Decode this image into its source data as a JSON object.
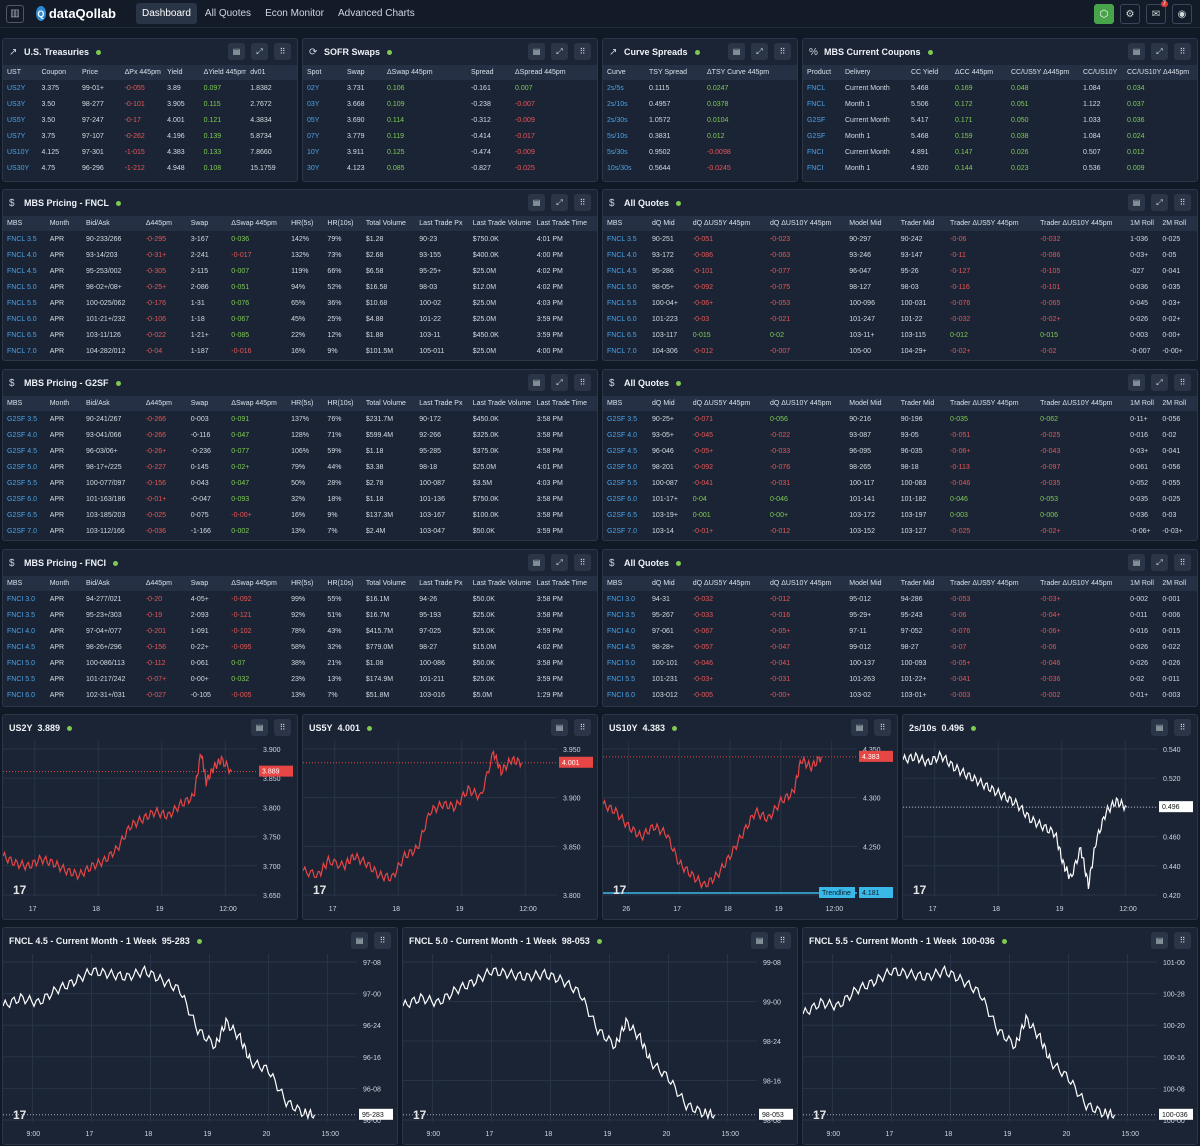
{
  "topbar": {
    "logo": "dataQollab",
    "nav": [
      "Dashboard",
      "All Quotes",
      "Econ Monitor",
      "Advanced Charts"
    ],
    "badge": "7"
  },
  "treasuries": {
    "title": "U.S. Treasuries",
    "cols": [
      "UST",
      "Coupon",
      "Price",
      "ΔPx 445pm",
      "Yield",
      "ΔYield 445pm",
      "dv01"
    ],
    "rows": [
      [
        "US2Y",
        "3.375",
        "99-01+",
        "-0-055",
        "3.89",
        "0.097",
        "1.8382"
      ],
      [
        "US3Y",
        "3.50",
        "98-277",
        "-0-101",
        "3.905",
        "0.115",
        "2.7672"
      ],
      [
        "US5Y",
        "3.50",
        "97-247",
        "-0-17",
        "4.001",
        "0.121",
        "4.3834"
      ],
      [
        "US7Y",
        "3.75",
        "97-107",
        "-0-262",
        "4.196",
        "0.139",
        "5.8734"
      ],
      [
        "US10Y",
        "4.125",
        "97-301",
        "-1-015",
        "4.383",
        "0.133",
        "7.8660"
      ],
      [
        "US30Y",
        "4.75",
        "96-296",
        "-1-212",
        "4.948",
        "0.108",
        "15.1759"
      ]
    ]
  },
  "sofr": {
    "title": "SOFR Swaps",
    "cols": [
      "Spot",
      "Swap",
      "ΔSwap 445pm",
      "Spread",
      "ΔSpread 445pm"
    ],
    "rows": [
      [
        "02Y",
        "3.731",
        "0.106",
        "-0.161",
        "0.007"
      ],
      [
        "03Y",
        "3.668",
        "0.109",
        "-0.238",
        "-0.007"
      ],
      [
        "05Y",
        "3.690",
        "0.114",
        "-0.312",
        "-0.009"
      ],
      [
        "07Y",
        "3.779",
        "0.119",
        "-0.414",
        "-0.017"
      ],
      [
        "10Y",
        "3.911",
        "0.125",
        "-0.474",
        "-0.009"
      ],
      [
        "30Y",
        "4.123",
        "0.085",
        "-0.827",
        "-0.025"
      ]
    ]
  },
  "curve": {
    "title": "Curve Spreads",
    "cols": [
      "Curve",
      "TSY Spread",
      "ΔTSY Curve 445pm"
    ],
    "rows": [
      [
        "2s/5s",
        "0.1115",
        "0.0247"
      ],
      [
        "2s/10s",
        "0.4957",
        "0.0378"
      ],
      [
        "2s/30s",
        "1.0572",
        "0.0104"
      ],
      [
        "5s/10s",
        "0.3831",
        "0.012"
      ],
      [
        "5s/30s",
        "0.9502",
        "-0.0098"
      ],
      [
        "10s/30s",
        "0.5644",
        "-0.0245"
      ]
    ]
  },
  "mbscc": {
    "title": "MBS Current Coupons",
    "cols": [
      "Product",
      "Delivery",
      "CC Yield",
      "ΔCC 445pm",
      "CC/US5Y Δ445pm",
      "CC/US10Y",
      "CC/US10Y Δ445pm"
    ],
    "rows": [
      [
        "FNCL",
        "Current Month",
        "5.468",
        "0.169",
        "0.048",
        "1.084",
        "0.034"
      ],
      [
        "FNCL",
        "Month 1",
        "5.506",
        "0.172",
        "0.051",
        "1.122",
        "0.037"
      ],
      [
        "G2SF",
        "Current Month",
        "5.417",
        "0.171",
        "0.050",
        "1.033",
        "0.036"
      ],
      [
        "G2SF",
        "Month 1",
        "5.468",
        "0.159",
        "0.038",
        "1.084",
        "0.024"
      ],
      [
        "FNCI",
        "Current Month",
        "4.891",
        "0.147",
        "0.026",
        "0.507",
        "0.012"
      ],
      [
        "FNCI",
        "Month 1",
        "4.920",
        "0.144",
        "0.023",
        "0.536",
        "0.009"
      ]
    ]
  },
  "pricing_cols": [
    "MBS",
    "Month",
    "Bid/Ask",
    "Δ445pm",
    "Swap",
    "ΔSwap 445pm",
    "HR(5s)",
    "HR(10s)",
    "Total Volume",
    "Last Trade Px",
    "Last Trade Volume",
    "Last Trade Time"
  ],
  "fncl": {
    "title": "MBS Pricing - FNCL",
    "rows": [
      [
        "FNCL 3.5",
        "APR",
        "90-233/266",
        "-0-295",
        "3-167",
        "0-036",
        "142%",
        "79%",
        "$1.28",
        "90-23",
        "$750.0K",
        "4:01 PM"
      ],
      [
        "FNCL 4.0",
        "APR",
        "93-14/203",
        "-0-31+",
        "2-241",
        "-0-017",
        "132%",
        "73%",
        "$2.68",
        "93-155",
        "$400.0K",
        "4:00 PM"
      ],
      [
        "FNCL 4.5",
        "APR",
        "95-253/002",
        "-0-305",
        "2-115",
        "0-007",
        "119%",
        "66%",
        "$6.58",
        "95-25+",
        "$25.0M",
        "4:02 PM"
      ],
      [
        "FNCL 5.0",
        "APR",
        "98-02+/08+",
        "-0-25+",
        "2-086",
        "0-051",
        "94%",
        "52%",
        "$16.58",
        "98-03",
        "$12.0M",
        "4:02 PM"
      ],
      [
        "FNCL 5.5",
        "APR",
        "100-025/062",
        "-0-176",
        "1-31",
        "0-076",
        "65%",
        "36%",
        "$10.68",
        "100-02",
        "$25.0M",
        "4:03 PM"
      ],
      [
        "FNCL 6.0",
        "APR",
        "101-21+/232",
        "-0-106",
        "1-18",
        "0-067",
        "45%",
        "25%",
        "$4.88",
        "101-22",
        "$25.0M",
        "3:59 PM"
      ],
      [
        "FNCL 6.5",
        "APR",
        "103-11/126",
        "-0-022",
        "1-21+",
        "0-085",
        "22%",
        "12%",
        "$1.88",
        "103-11",
        "$450.0K",
        "3:59 PM"
      ],
      [
        "FNCL 7.0",
        "APR",
        "104-282/012",
        "-0-04",
        "1-187",
        "-0-016",
        "16%",
        "9%",
        "$101.5M",
        "105-011",
        "$25.0M",
        "4:00 PM"
      ]
    ]
  },
  "g2sf": {
    "title": "MBS Pricing - G2SF",
    "rows": [
      [
        "G2SF 3.5",
        "APR",
        "90-241/267",
        "-0-266",
        "0-003",
        "0-091",
        "137%",
        "76%",
        "$231.7M",
        "90-172",
        "$450.0K",
        "3:58 PM"
      ],
      [
        "G2SF 4.0",
        "APR",
        "93-041/066",
        "-0-266",
        "-0-116",
        "0-047",
        "128%",
        "71%",
        "$599.4M",
        "92-266",
        "$325.0K",
        "3:58 PM"
      ],
      [
        "G2SF 4.5",
        "APR",
        "96-03/06+",
        "-0-26+",
        "-0-236",
        "0-077",
        "106%",
        "59%",
        "$1.18",
        "95-285",
        "$375.0K",
        "3:58 PM"
      ],
      [
        "G2SF 5.0",
        "APR",
        "98-17+/225",
        "-0-227",
        "0-145",
        "0-02+",
        "79%",
        "44%",
        "$3.38",
        "98-18",
        "$25.0M",
        "4:01 PM"
      ],
      [
        "G2SF 5.5",
        "APR",
        "100-077/097",
        "-0-156",
        "0-043",
        "0-047",
        "50%",
        "28%",
        "$2.78",
        "100-087",
        "$3.5M",
        "4:03 PM"
      ],
      [
        "G2SF 6.0",
        "APR",
        "101-163/186",
        "-0-01+",
        "-0-047",
        "0-093",
        "32%",
        "18%",
        "$1.18",
        "101-136",
        "$750.0K",
        "3:58 PM"
      ],
      [
        "G2SF 6.5",
        "APR",
        "103-185/203",
        "-0-025",
        "0-075",
        "-0-00+",
        "16%",
        "9%",
        "$137.3M",
        "103-167",
        "$100.0K",
        "3:58 PM"
      ],
      [
        "G2SF 7.0",
        "APR",
        "103-112/166",
        "-0-036",
        "-1-166",
        "0-002",
        "13%",
        "7%",
        "$2.4M",
        "103-047",
        "$50.0K",
        "3:59 PM"
      ]
    ]
  },
  "fnci": {
    "title": "MBS Pricing - FNCI",
    "rows": [
      [
        "FNCI 3.0",
        "APR",
        "94-277/021",
        "-0-20",
        "4-05+",
        "-0-092",
        "99%",
        "55%",
        "$16.1M",
        "94-26",
        "$50.0K",
        "3:58 PM"
      ],
      [
        "FNCI 3.5",
        "APR",
        "95-23+/303",
        "-0-19",
        "2-093",
        "-0-121",
        "92%",
        "51%",
        "$16.7M",
        "95-193",
        "$25.0K",
        "3:58 PM"
      ],
      [
        "FNCI 4.0",
        "APR",
        "97-04+/077",
        "-0-201",
        "1-091",
        "-0-102",
        "78%",
        "43%",
        "$415.7M",
        "97-025",
        "$25.0K",
        "3:59 PM"
      ],
      [
        "FNCI 4.5",
        "APR",
        "98-26+/296",
        "-0-156",
        "0-22+",
        "-0-095",
        "58%",
        "32%",
        "$779.0M",
        "98-27",
        "$15.0M",
        "4:02 PM"
      ],
      [
        "FNCI 5.0",
        "APR",
        "100-086/113",
        "-0-112",
        "0-061",
        "0-07",
        "38%",
        "21%",
        "$1.08",
        "100-086",
        "$50.0K",
        "3:58 PM"
      ],
      [
        "FNCI 5.5",
        "APR",
        "101-217/242",
        "-0-07+",
        "0-00+",
        "0-032",
        "23%",
        "13%",
        "$174.9M",
        "101-211",
        "$25.0K",
        "3:59 PM"
      ],
      [
        "FNCI 6.0",
        "APR",
        "102-31+/031",
        "-0-027",
        "-0-105",
        "-0-005",
        "13%",
        "7%",
        "$51.8M",
        "103-016",
        "$5.0M",
        "1:29 PM"
      ]
    ]
  },
  "quotes_cols_a": [
    "MBS",
    "dQ Mid",
    "dQ ΔUS5Y 445pm",
    "dQ ΔUS10Y 445pm",
    "Model Mid",
    "Trader Mid",
    "Trader ΔUS5Y 445pm",
    "Trader ΔUS10Y 445pm",
    "1M Roll",
    "2M Roll"
  ],
  "quotes_cols_b": [
    "MBS",
    "dQ Mid",
    "dQ ΔUS5Y 445pm",
    "dQ ΔUS10Y 445pm",
    "Model Mid",
    "Trader Mid",
    "Trader ΔUS5Y 445pm",
    "Trader ΔUS10Y 445pm",
    "1M Roll",
    "2M Roll"
  ],
  "q1": {
    "title": "All Quotes",
    "rows": [
      [
        "FNCL 3.5",
        "90-251",
        "-0-051",
        "-0-023",
        "90-297",
        "90-242",
        "-0-06",
        "-0-032",
        "1-036",
        "0-025"
      ],
      [
        "FNCL 4.0",
        "93-172",
        "-0-086",
        "-0-063",
        "93-246",
        "93-147",
        "-0-11",
        "-0-086",
        "0-03+",
        "0-05"
      ],
      [
        "FNCL 4.5",
        "95-286",
        "-0-101",
        "-0-077",
        "96-047",
        "95-26",
        "-0-127",
        "-0-105",
        "-027",
        "0-041"
      ],
      [
        "FNCL 5.0",
        "98-05+",
        "-0-092",
        "-0-075",
        "98-127",
        "98-03",
        "-0-116",
        "-0-101",
        "0-036",
        "0-035"
      ],
      [
        "FNCL 5.5",
        "100-04+",
        "-0-06+",
        "-0-053",
        "100-096",
        "100-031",
        "-0-076",
        "-0-065",
        "0-045",
        "0-03+"
      ],
      [
        "FNCL 6.0",
        "101-223",
        "-0-03",
        "-0-021",
        "101-247",
        "101-22",
        "-0-032",
        "-0-02+",
        "0-026",
        "0-02+"
      ],
      [
        "FNCL 6.5",
        "103-117",
        "0-015",
        "0-02",
        "103-11+",
        "103-115",
        "0-012",
        "0-015",
        "0-003",
        "0-00+"
      ],
      [
        "FNCL 7.0",
        "104-306",
        "-0-012",
        "-0-007",
        "105-00",
        "104-29+",
        "-0-02+",
        "-0-02",
        "-0-007",
        "-0-00+"
      ]
    ]
  },
  "q2": {
    "title": "All Quotes",
    "rows": [
      [
        "G2SF 3.5",
        "90-25+",
        "-0-071",
        "0-056",
        "90-216",
        "90-196",
        "0-035",
        "0-062",
        "0-11+",
        "0-056"
      ],
      [
        "G2SF 4.0",
        "93-05+",
        "-0-045",
        "-0-022",
        "93-087",
        "93-05",
        "-0-051",
        "-0-025",
        "0-016",
        "0-02"
      ],
      [
        "G2SF 4.5",
        "96-046",
        "-0-05+",
        "-0-033",
        "96-095",
        "96-035",
        "-0-06+",
        "-0-043",
        "0-03+",
        "0-041"
      ],
      [
        "G2SF 5.0",
        "98-201",
        "-0-092",
        "-0-076",
        "98-265",
        "98-18",
        "-0-113",
        "-0-097",
        "0-061",
        "0-056"
      ],
      [
        "G2SF 5.5",
        "100-087",
        "-0-041",
        "-0-031",
        "100-117",
        "100-083",
        "-0-046",
        "-0-035",
        "0-052",
        "0-055"
      ],
      [
        "G2SF 6.0",
        "101-17+",
        "0-04",
        "0-046",
        "101-141",
        "101-182",
        "0-046",
        "0-053",
        "0-035",
        "0-025"
      ],
      [
        "G2SF 6.5",
        "103-19+",
        "0-001",
        "0-00+",
        "103-172",
        "103-197",
        "0-003",
        "0-006",
        "0-036",
        "0-03"
      ],
      [
        "G2SF 7.0",
        "103-14",
        "-0-01+",
        "-0-012",
        "103-152",
        "103-127",
        "-0-025",
        "-0-02+",
        "-0-06+",
        "-0-03+"
      ]
    ]
  },
  "q3": {
    "title": "All Quotes",
    "rows": [
      [
        "FNCI 3.0",
        "94-31",
        "-0-032",
        "-0-012",
        "95-012",
        "94-286",
        "-0-053",
        "-0-03+",
        "0-002",
        "0-001"
      ],
      [
        "FNCI 3.5",
        "95-267",
        "-0-033",
        "-0-016",
        "95-29+",
        "95-243",
        "-0-06",
        "-0-04+",
        "0-011",
        "0-006"
      ],
      [
        "FNCI 4.0",
        "97-061",
        "-0-067",
        "-0-05+",
        "97-11",
        "97-052",
        "-0-076",
        "-0-06+",
        "0-016",
        "0-015"
      ],
      [
        "FNCI 4.5",
        "98-28+",
        "-0-057",
        "-0-047",
        "99-012",
        "98-27",
        "-0-07",
        "-0-06",
        "0-026",
        "0-022"
      ],
      [
        "FNCI 5.0",
        "100-101",
        "-0-046",
        "-0-041",
        "100-137",
        "100-093",
        "-0-05+",
        "-0-046",
        "0-026",
        "0-026"
      ],
      [
        "FNCI 5.5",
        "101-231",
        "-0-03+",
        "-0-031",
        "101-263",
        "101-22+",
        "-0-041",
        "-0-036",
        "0-02",
        "0-011"
      ],
      [
        "FNCI 6.0",
        "103-012",
        "-0-005",
        "-0-00+",
        "103-02",
        "103-01+",
        "-0-003",
        "-0-002",
        "0-01+",
        "0-003"
      ]
    ]
  },
  "charts": [
    {
      "title": "US2Y",
      "value": "3.889",
      "color": "#e84545",
      "yticks": [
        "3.900",
        "3.850",
        "3.800",
        "3.750",
        "3.700",
        "3.650"
      ],
      "xticks": [
        "17",
        "18",
        "19",
        "12:00"
      ],
      "last_label": "3.889"
    },
    {
      "title": "US5Y",
      "value": "4.001",
      "color": "#e84545",
      "yticks": [
        "3.950",
        "3.900",
        "3.850",
        "3.800"
      ],
      "xticks": [
        "17",
        "18",
        "19",
        "12:00"
      ],
      "last_label": "4.001"
    },
    {
      "title": "US10Y",
      "value": "4.383",
      "color": "#e84545",
      "yticks": [
        "4.350",
        "4.300",
        "4.250",
        "4.200"
      ],
      "xticks": [
        "26",
        "17",
        "18",
        "19",
        "12:00"
      ],
      "last_label": "4.383",
      "trend_label": "Trendline",
      "trend_value": "4.181"
    },
    {
      "title": "2s/10s",
      "value": "0.496",
      "color": "#ffffff",
      "yticks": [
        "0.540",
        "0.520",
        "0.480",
        "0.460",
        "0.440",
        "0.420"
      ],
      "xticks": [
        "17",
        "18",
        "19",
        "12:00"
      ],
      "last_label": "0.496"
    },
    {
      "title": "FNCL 4.5 - Current Month - 1 Week",
      "value": "95-283",
      "color": "#ffffff",
      "yticks": [
        "97-08",
        "97-00",
        "96-24",
        "96-16",
        "96-08",
        "96-00"
      ],
      "xticks": [
        "9:00",
        "17",
        "18",
        "19",
        "20",
        "15:00"
      ],
      "last_label": "95-283"
    },
    {
      "title": "FNCL 5.0 - Current Month - 1 Week",
      "value": "98-053",
      "color": "#ffffff",
      "yticks": [
        "99-08",
        "99-00",
        "98-24",
        "98-16",
        "98-08"
      ],
      "xticks": [
        "9:00",
        "17",
        "18",
        "19",
        "20",
        "15:00"
      ],
      "last_label": "98-053"
    },
    {
      "title": "FNCL 5.5 - Current Month - 1 Week",
      "value": "100-036",
      "color": "#ffffff",
      "yticks": [
        "101-00",
        "100-28",
        "100-20",
        "100-16",
        "100-08",
        "100-00"
      ],
      "xticks": [
        "9:00",
        "17",
        "18",
        "19",
        "20",
        "15:00"
      ],
      "last_label": "100-036"
    }
  ]
}
